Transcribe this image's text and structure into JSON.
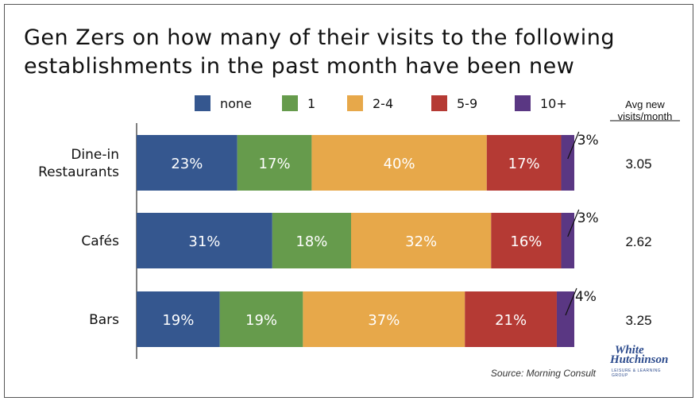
{
  "title": "Gen Zers on how many of their visits to the following establishments in the past month have been new",
  "source": "Source: Morning Consult",
  "logo": {
    "line1": "White",
    "line2": "Hutchinson",
    "tagline": "LEISURE & LEARNING GROUP"
  },
  "colors": {
    "none": "#35578f",
    "1": "#669b4c",
    "2-4": "#e7a84a",
    "5-9": "#b53a34",
    "10+": "#5a3783"
  },
  "chart_data": {
    "type": "bar",
    "orientation": "horizontal",
    "stacked": true,
    "categories": [
      "Dine-in Restaurants",
      "Cafés",
      "Bars"
    ],
    "category_lines": [
      [
        "Dine-in",
        "Restaurants"
      ],
      [
        "Cafés"
      ],
      [
        "Bars"
      ]
    ],
    "series": [
      {
        "name": "none",
        "values": [
          23,
          31,
          19
        ]
      },
      {
        "name": "1",
        "values": [
          17,
          18,
          19
        ]
      },
      {
        "name": "2-4",
        "values": [
          40,
          32,
          37
        ]
      },
      {
        "name": "5-9",
        "values": [
          17,
          16,
          21
        ]
      },
      {
        "name": "10+",
        "values": [
          3,
          3,
          4
        ]
      }
    ],
    "labels": [
      [
        "23%",
        "17%",
        "40%",
        "17%",
        "3%"
      ],
      [
        "31%",
        "18%",
        "32%",
        "16%",
        "3%"
      ],
      [
        "19%",
        "19%",
        "37%",
        "21%",
        "4%"
      ]
    ],
    "avg_header": "Avg new visits/month",
    "avg_header_lines": [
      "Avg new",
      "visits/month"
    ],
    "avg_values": [
      "3.05",
      "2.62",
      "3.25"
    ],
    "legend_placement": "top",
    "xlim": [
      0,
      100
    ],
    "grid": false
  }
}
